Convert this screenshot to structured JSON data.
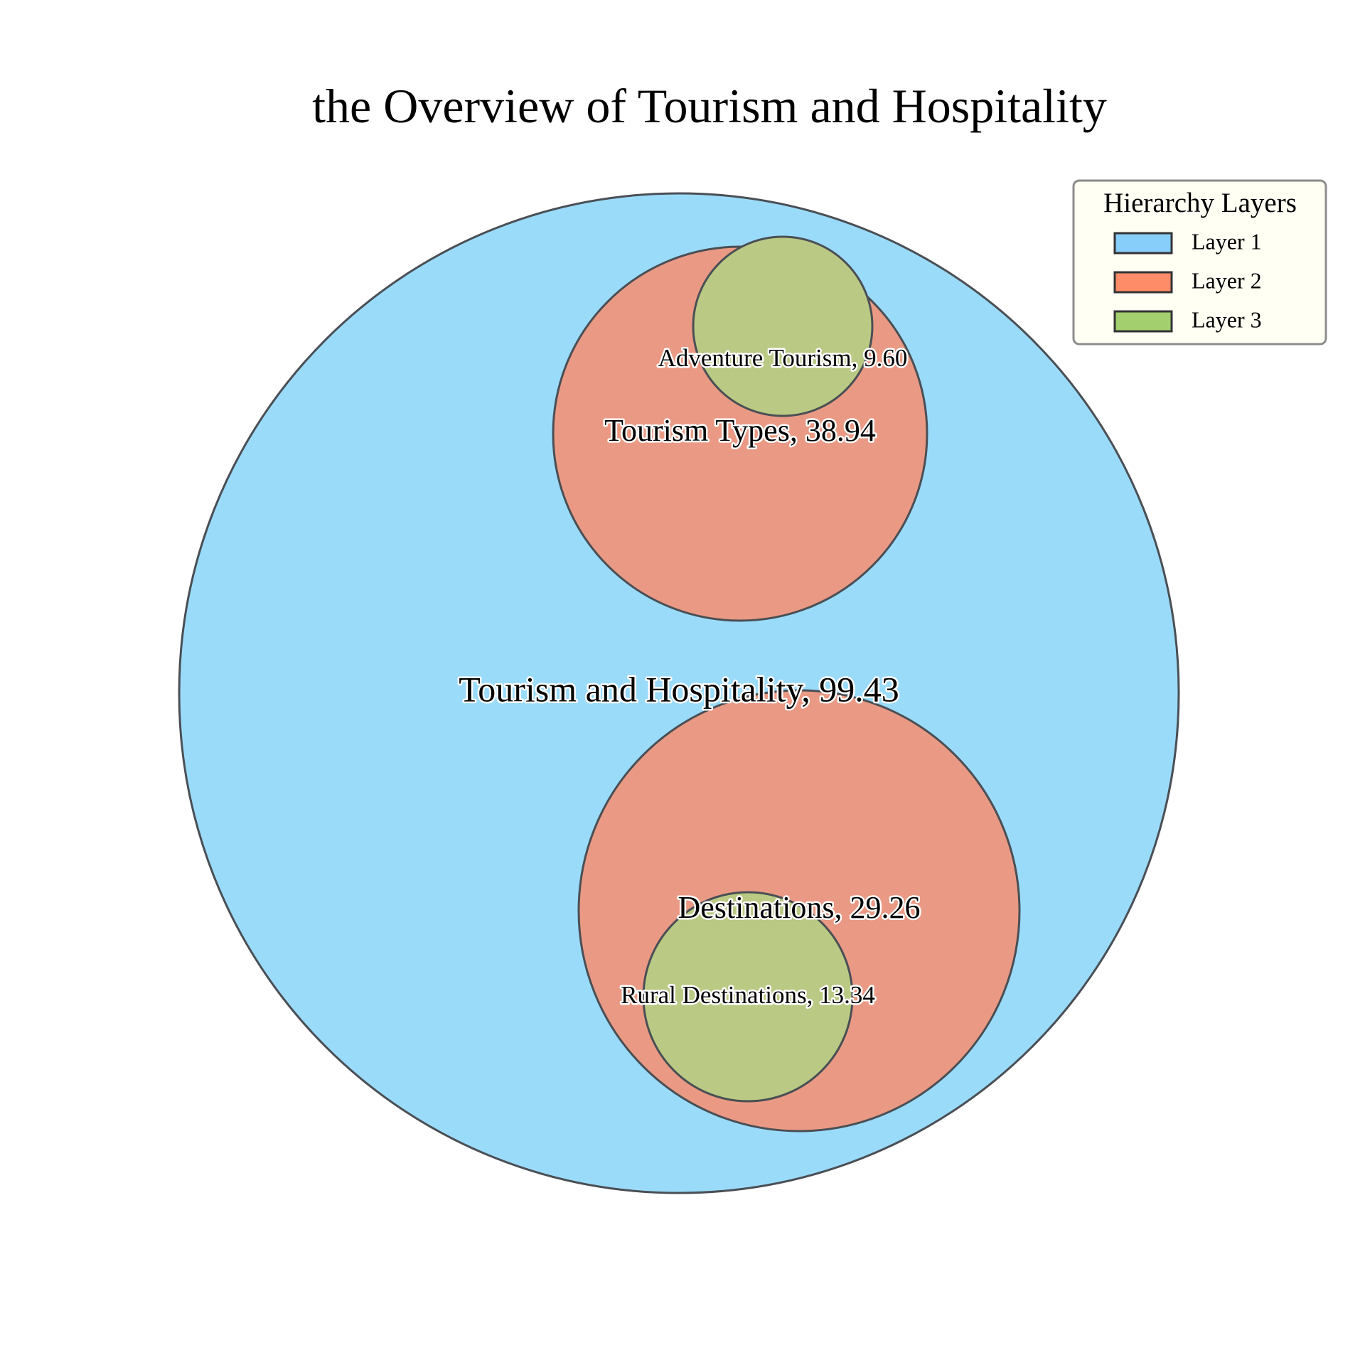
{
  "chart_data": {
    "type": "circle-packing",
    "title": "the Overview of Tourism and Hospitality",
    "nodes": [
      {
        "id": "root",
        "name": "Tourism and Hospitality",
        "value": 99.43,
        "value_label": "99.43",
        "layer": 1,
        "parent": null
      },
      {
        "id": "types",
        "name": "Tourism Types",
        "value": 38.94,
        "value_label": "38.94",
        "layer": 2,
        "parent": "root"
      },
      {
        "id": "adventure",
        "name": "Adventure Tourism",
        "value": 9.6,
        "value_label": "9.60",
        "layer": 3,
        "parent": "types"
      },
      {
        "id": "destinations",
        "name": "Destinations",
        "value": 29.26,
        "value_label": "29.26",
        "layer": 2,
        "parent": "root"
      },
      {
        "id": "rural",
        "name": "Rural Destinations",
        "value": 13.34,
        "value_label": "13.34",
        "layer": 3,
        "parent": "destinations"
      }
    ],
    "legend": {
      "title": "Hierarchy Layers",
      "placement": "top-right",
      "entries": [
        {
          "label": "Layer 1",
          "color": "#87CEFA"
        },
        {
          "label": "Layer 2",
          "color": "#FF8C69"
        },
        {
          "label": "Layer 3",
          "color": "#A3CF6E"
        }
      ]
    },
    "layer_colors": {
      "1": "#9BDBFA",
      "2": "#EA9A84",
      "3": "#BACA84"
    },
    "edge_color": "#4a4f55"
  }
}
